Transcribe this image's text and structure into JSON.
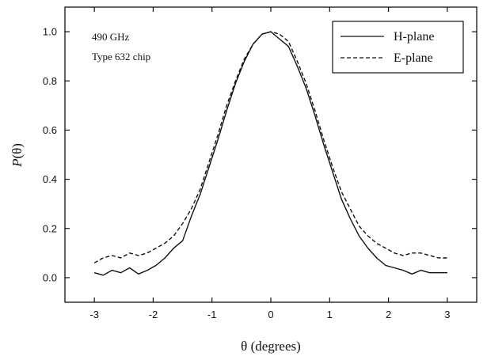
{
  "chart_data": {
    "type": "line",
    "title": "",
    "xlabel": "θ (degrees)",
    "ylabel_italic": "P",
    "ylabel_rest": "(θ)",
    "xlim": [
      -3.5,
      3.5
    ],
    "ylim": [
      -0.1,
      1.1
    ],
    "xticks": [
      -3,
      -2,
      -1,
      0,
      1,
      2,
      3
    ],
    "xtick_labels": [
      "-3",
      "-2",
      "-1",
      "0",
      "1",
      "2",
      "3"
    ],
    "yticks": [
      0.0,
      0.2,
      0.4,
      0.6,
      0.8,
      1.0
    ],
    "ytick_labels": [
      "0.0",
      "0.2",
      "0.4",
      "0.6",
      "0.8",
      "1.0"
    ],
    "grid": false,
    "legend_position": "top-right",
    "annotations": [
      "490 GHz",
      "Type 632 chip"
    ],
    "series": [
      {
        "name": "H-plane",
        "style": "solid",
        "x": [
          -3.0,
          -2.85,
          -2.7,
          -2.55,
          -2.4,
          -2.25,
          -2.1,
          -1.95,
          -1.8,
          -1.65,
          -1.5,
          -1.35,
          -1.2,
          -1.05,
          -0.9,
          -0.75,
          -0.6,
          -0.45,
          -0.3,
          -0.15,
          0.0,
          0.15,
          0.3,
          0.45,
          0.6,
          0.75,
          0.9,
          1.05,
          1.2,
          1.35,
          1.5,
          1.65,
          1.8,
          1.95,
          2.1,
          2.25,
          2.4,
          2.55,
          2.7,
          2.85,
          3.0
        ],
        "y": [
          0.02,
          0.01,
          0.03,
          0.02,
          0.04,
          0.015,
          0.03,
          0.05,
          0.08,
          0.12,
          0.15,
          0.25,
          0.34,
          0.45,
          0.56,
          0.68,
          0.79,
          0.88,
          0.95,
          0.99,
          1.0,
          0.97,
          0.94,
          0.86,
          0.77,
          0.66,
          0.54,
          0.43,
          0.32,
          0.24,
          0.17,
          0.12,
          0.08,
          0.05,
          0.04,
          0.03,
          0.015,
          0.03,
          0.02,
          0.02,
          0.02
        ]
      },
      {
        "name": "E-plane",
        "style": "dashed",
        "x": [
          -3.0,
          -2.85,
          -2.7,
          -2.55,
          -2.4,
          -2.25,
          -2.1,
          -1.95,
          -1.8,
          -1.65,
          -1.5,
          -1.35,
          -1.2,
          -1.05,
          -0.9,
          -0.75,
          -0.6,
          -0.45,
          -0.3,
          -0.15,
          0.0,
          0.15,
          0.3,
          0.45,
          0.6,
          0.75,
          0.9,
          1.05,
          1.2,
          1.35,
          1.5,
          1.65,
          1.8,
          1.95,
          2.1,
          2.25,
          2.4,
          2.55,
          2.7,
          2.85,
          3.0
        ],
        "y": [
          0.06,
          0.08,
          0.09,
          0.08,
          0.1,
          0.09,
          0.1,
          0.12,
          0.14,
          0.17,
          0.22,
          0.28,
          0.36,
          0.47,
          0.58,
          0.7,
          0.8,
          0.89,
          0.95,
          0.99,
          1.0,
          0.99,
          0.96,
          0.88,
          0.79,
          0.68,
          0.56,
          0.45,
          0.35,
          0.28,
          0.21,
          0.17,
          0.14,
          0.12,
          0.1,
          0.09,
          0.1,
          0.1,
          0.09,
          0.08,
          0.08
        ]
      }
    ]
  }
}
